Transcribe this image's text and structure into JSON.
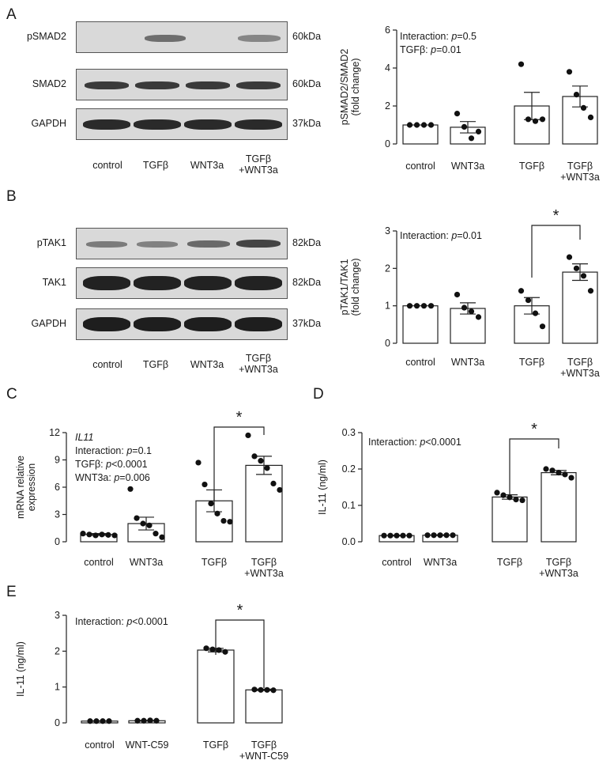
{
  "panel_letters": [
    "A",
    "B",
    "C",
    "D",
    "E"
  ],
  "blots": [
    {
      "panel": "A",
      "rows": [
        {
          "label": "pSMAD2",
          "kda": "60kDa"
        },
        {
          "label": "SMAD2",
          "kda": "60kDa"
        },
        {
          "label": "GAPDH",
          "kda": "37kDa"
        }
      ],
      "lanes": [
        "control",
        "TGFβ",
        "WNT3a",
        "TGFβ\n+WNT3a"
      ]
    },
    {
      "panel": "B",
      "rows": [
        {
          "label": "pTAK1",
          "kda": "82kDa"
        },
        {
          "label": "TAK1",
          "kda": "82kDa"
        },
        {
          "label": "GAPDH",
          "kda": "37kDa"
        }
      ],
      "lanes": [
        "control",
        "TGFβ",
        "WNT3a",
        "TGFβ\n+WNT3a"
      ]
    }
  ],
  "chart_data": [
    {
      "panel": "A",
      "type": "bar",
      "categories": [
        "control",
        "WNT3a",
        "TGFβ",
        "TGFβ\n+WNT3a"
      ],
      "values": [
        1.0,
        0.88,
        2.0,
        2.5
      ],
      "sem": [
        0.0,
        0.3,
        0.72,
        0.55
      ],
      "points": [
        [
          1,
          1,
          1,
          1
        ],
        [
          1.6,
          0.9,
          0.3,
          0.65
        ],
        [
          4.2,
          1.3,
          1.2,
          1.3
        ],
        [
          3.8,
          2.6,
          1.9,
          1.4
        ]
      ],
      "ylabel": "pSMAD2/SMAD2\n(fold change)",
      "ylim": [
        0,
        6
      ],
      "yticks": [
        0,
        2,
        4,
        6
      ],
      "annotations": [
        "Interaction: p=0.5",
        "TGFβ: p=0.01"
      ],
      "significance": null
    },
    {
      "panel": "B",
      "type": "bar",
      "categories": [
        "control",
        "WNT3a",
        "TGFβ",
        "TGFβ\n+WNT3a"
      ],
      "values": [
        1.0,
        0.93,
        1.0,
        1.9
      ],
      "sem": [
        0.0,
        0.15,
        0.22,
        0.22
      ],
      "points": [
        [
          1,
          1,
          1,
          1
        ],
        [
          1.3,
          0.95,
          0.85,
          0.7
        ],
        [
          1.4,
          1.15,
          0.8,
          0.45
        ],
        [
          2.3,
          2.0,
          1.8,
          1.4
        ]
      ],
      "ylabel": "pTAK1/TAK1\n(fold change)",
      "ylim": [
        0,
        3
      ],
      "yticks": [
        0,
        1,
        2,
        3
      ],
      "annotations": [
        "Interaction: p=0.01"
      ],
      "significance": {
        "from": 2,
        "to": 3,
        "label": "*"
      }
    },
    {
      "panel": "C",
      "type": "bar",
      "categories": [
        "control",
        "WNT3a",
        "TGFβ",
        "TGFβ\n+WNT3a"
      ],
      "values": [
        0.8,
        2.0,
        4.5,
        8.4
      ],
      "sem": [
        0.1,
        0.7,
        1.2,
        1.0
      ],
      "points": [
        [
          0.9,
          0.8,
          0.7,
          0.8,
          0.75,
          0.7
        ],
        [
          5.8,
          2.6,
          2.0,
          1.8,
          0.9,
          0.5
        ],
        [
          8.7,
          6.3,
          4.2,
          3.1,
          2.3,
          2.2
        ],
        [
          11.7,
          9.4,
          8.9,
          8.1,
          6.4,
          5.7
        ]
      ],
      "ylabel": "mRNA relative\nexpression",
      "ylim": [
        0,
        12
      ],
      "yticks": [
        0,
        3,
        6,
        9,
        12
      ],
      "annotations": [
        "IL11",
        "Interaction: p=0.1",
        "TGFβ: p<0.0001",
        "WNT3a: p=0.006"
      ],
      "significance": {
        "from": 2,
        "to": 3,
        "label": "*"
      }
    },
    {
      "panel": "D",
      "type": "bar",
      "categories": [
        "control",
        "WNT3a",
        "TGFβ",
        "TGFβ\n+WNT3a"
      ],
      "values": [
        0.017,
        0.018,
        0.123,
        0.19
      ],
      "sem": [
        0.001,
        0.001,
        0.006,
        0.006
      ],
      "points": [
        [
          0.017,
          0.017,
          0.017,
          0.017,
          0.017
        ],
        [
          0.018,
          0.018,
          0.018,
          0.018,
          0.018
        ],
        [
          0.135,
          0.128,
          0.122,
          0.116,
          0.114
        ],
        [
          0.2,
          0.196,
          0.19,
          0.185,
          0.176
        ]
      ],
      "ylabel": "IL-11 (ng/ml)",
      "ylim": [
        0,
        0.3
      ],
      "yticks": [
        0.0,
        0.1,
        0.2,
        0.3
      ],
      "annotations": [
        "Interaction: p<0.0001"
      ],
      "significance": {
        "from": 2,
        "to": 3,
        "label": "*"
      }
    },
    {
      "panel": "E",
      "type": "bar",
      "categories": [
        "control",
        "WNT-C59",
        "TGFβ",
        "TGFβ\n+WNT-C59"
      ],
      "values": [
        0.05,
        0.06,
        2.03,
        0.92
      ],
      "sem": [
        0.005,
        0.01,
        0.05,
        0.02
      ],
      "points": [
        [
          0.05,
          0.05,
          0.05,
          0.05
        ],
        [
          0.06,
          0.06,
          0.07,
          0.06
        ],
        [
          2.08,
          2.05,
          2.03,
          1.98
        ],
        [
          0.93,
          0.92,
          0.92,
          0.91
        ]
      ],
      "ylabel": "IL-11 (ng/ml)",
      "ylim": [
        0,
        3
      ],
      "yticks": [
        0,
        1,
        2,
        3
      ],
      "annotations": [
        "Interaction: p<0.0001"
      ],
      "significance": {
        "from": 2,
        "to": 3,
        "label": "*"
      }
    }
  ]
}
